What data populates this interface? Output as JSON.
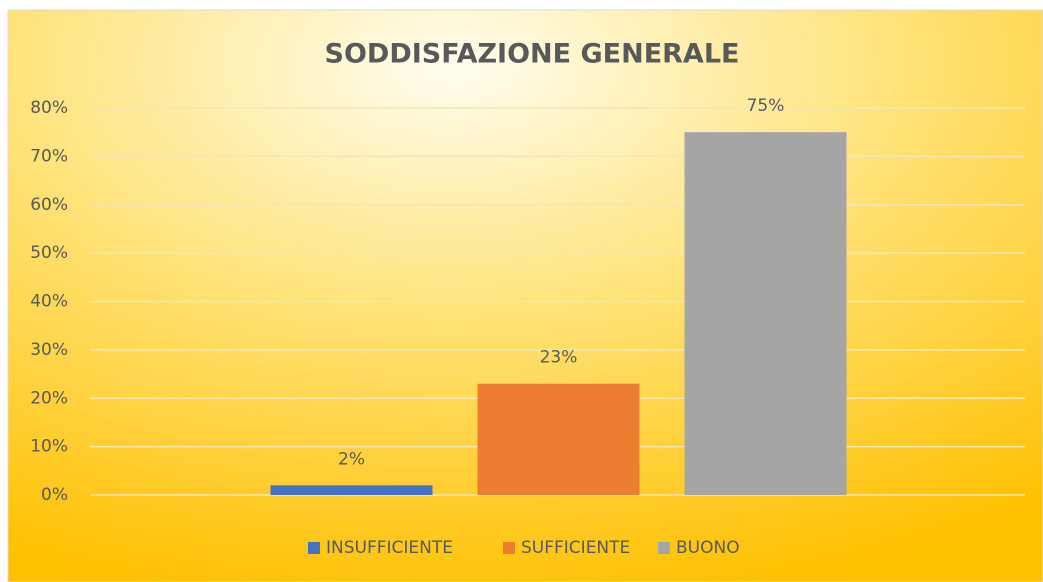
{
  "chart_data": {
    "type": "bar",
    "title": "SODDISFAZIONE GENERALE",
    "categories": [
      null
    ],
    "series": [
      {
        "name": "INSUFFICIENTE",
        "color": "#4472c4",
        "values": [
          2
        ],
        "value_labels": [
          "2%"
        ]
      },
      {
        "name": "SUFFICIENTE",
        "color": "#ed7d31",
        "values": [
          23
        ],
        "value_labels": [
          "23%"
        ]
      },
      {
        "name": "BUONO",
        "color": "#a5a5a5",
        "values": [
          75
        ],
        "value_labels": [
          "75%"
        ]
      }
    ],
    "ylim": [
      0,
      80
    ],
    "yticks": [
      {
        "value": 0,
        "label": "0%"
      },
      {
        "value": 10,
        "label": "10%"
      },
      {
        "value": 20,
        "label": "20%"
      },
      {
        "value": 30,
        "label": "30%"
      },
      {
        "value": 40,
        "label": "40%"
      },
      {
        "value": 50,
        "label": "50%"
      },
      {
        "value": 60,
        "label": "60%"
      },
      {
        "value": 70,
        "label": "70%"
      },
      {
        "value": 80,
        "label": "80%"
      }
    ],
    "grid": true,
    "legend": "bottom"
  }
}
